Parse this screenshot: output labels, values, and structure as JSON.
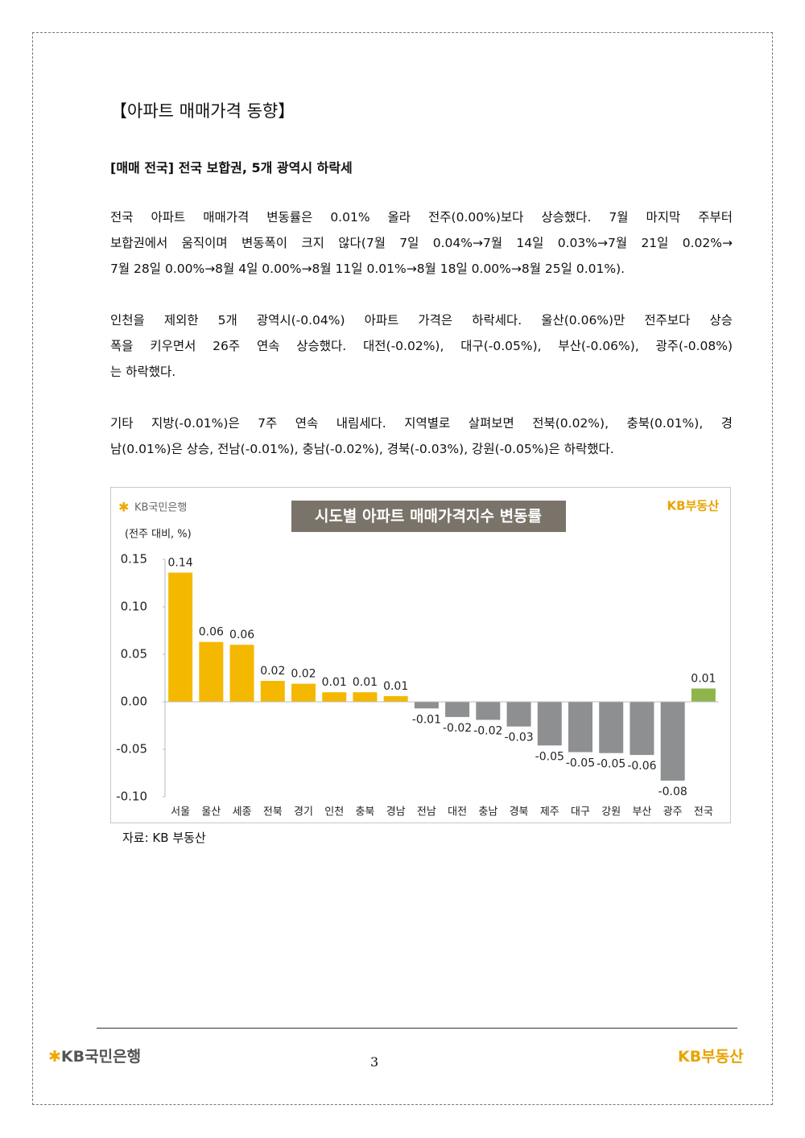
{
  "section_title": "【아파트 매매가격 동향】",
  "subheading": "[매매 전국] 전국 보합권, 5개 광역시 하락세",
  "paragraphs": [
    [
      "전국 아파트 매매가격 변동률은 0.01% 올라 전주(0.00%)보다 상승했다. 7월 마지막 주부터",
      "보합권에서 움직이며 변동폭이 크지 않다(7월 7일 0.04%→7월 14일 0.03%→7월 21일 0.02%→",
      "7월 28일 0.00%→8월 4일 0.00%→8월 11일 0.01%→8월 18일 0.00%→8월 25일 0.01%)."
    ],
    [
      "인천을 제외한 5개 광역시(-0.04%) 아파트 가격은 하락세다. 울산(0.06%)만 전주보다 상승",
      "폭을 키우면서 26주 연속 상승했다. 대전(-0.02%), 대구(-0.05%), 부산(-0.06%), 광주(-0.08%)",
      "는 하락했다."
    ],
    [
      "기타 지방(-0.01%)은 7주 연속 내림세다. 지역별로 살펴보면 전북(0.02%), 충북(0.01%), 경",
      "남(0.01%)은 상승, 전남(-0.01%), 충남(-0.02%), 경북(-0.03%), 강원(-0.05%)은 하락했다."
    ]
  ],
  "chart_data": {
    "type": "bar",
    "title": "시도별 아파트 매매가격지수 변동률",
    "logo_left": "KB국민은행",
    "logo_right": "KB부동산",
    "y_label": "(전주 대비, %)",
    "categories": [
      "서울",
      "울산",
      "세종",
      "전북",
      "경기",
      "인천",
      "충북",
      "경남",
      "전남",
      "대전",
      "충남",
      "경북",
      "제주",
      "대구",
      "강원",
      "부산",
      "광주",
      "전국"
    ],
    "values": [
      0.136,
      0.063,
      0.06,
      0.022,
      0.019,
      0.01,
      0.01,
      0.006,
      -0.007,
      -0.016,
      -0.019,
      -0.026,
      -0.046,
      -0.053,
      -0.054,
      -0.056,
      -0.083,
      0.014
    ],
    "value_labels": [
      "0.14",
      "0.06",
      "0.06",
      "0.02",
      "0.02",
      "0.01",
      "0.01",
      "0.01",
      "-0.01",
      "-0.02",
      "-0.02",
      "-0.03",
      "-0.05",
      "-0.05",
      "-0.05",
      "-0.06",
      "-0.08",
      "0.01"
    ],
    "colors": [
      "#f5b800",
      "#f5b800",
      "#f5b800",
      "#f5b800",
      "#f5b800",
      "#f5b800",
      "#f5b800",
      "#f5b800",
      "#8e8f91",
      "#8e8f91",
      "#8e8f91",
      "#8e8f91",
      "#8e8f91",
      "#8e8f91",
      "#8e8f91",
      "#8e8f91",
      "#8e8f91",
      "#8db54a"
    ],
    "ylim": [
      -0.1,
      0.15
    ],
    "yticks": [
      0.15,
      {
        "value": 0.1,
        "label": "0.10"
      },
      0.05,
      {
        "value": 0,
        "label": "0.00"
      },
      -0.05,
      {
        "value": -0.1,
        "label": "-0.10"
      }
    ],
    "grid": false
  },
  "source": "자료: KB 부동산",
  "footer": {
    "logo_left": "KB국민은행",
    "page_number": "3",
    "logo_right": "KB부동산"
  }
}
